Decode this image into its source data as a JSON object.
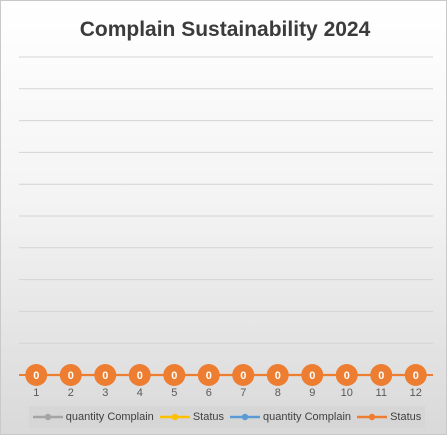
{
  "chart_data": {
    "type": "line",
    "title": "Complain Sustainability 2024",
    "xlabel": "",
    "ylabel": "",
    "categories": [
      "1",
      "2",
      "3",
      "4",
      "5",
      "6",
      "7",
      "8",
      "9",
      "10",
      "11",
      "12"
    ],
    "ylim": [
      0,
      1
    ],
    "grid": true,
    "legend_position": "bottom",
    "series": [
      {
        "name": "quantity Complain",
        "color": "#a5a5a5",
        "values": [
          0,
          0,
          0,
          0,
          0,
          0,
          0,
          0,
          0,
          0,
          0,
          0
        ]
      },
      {
        "name": "Status",
        "color": "#ffc000",
        "values": [
          0,
          0,
          0,
          0,
          0,
          0,
          0,
          0,
          0,
          0,
          0,
          0
        ]
      },
      {
        "name": "quantity Complain",
        "color": "#5b9bd5",
        "values": [
          0,
          0,
          0,
          0,
          0,
          0,
          0,
          0,
          0,
          0,
          0,
          0
        ]
      },
      {
        "name": "Status",
        "color": "#ed7d31",
        "values": [
          0,
          0,
          0,
          0,
          0,
          0,
          0,
          0,
          0,
          0,
          0,
          0
        ],
        "data_labels": [
          "0",
          "0",
          "0",
          "0",
          "0",
          "0",
          "0",
          "0",
          "0",
          "0",
          "0",
          "0"
        ]
      }
    ]
  }
}
